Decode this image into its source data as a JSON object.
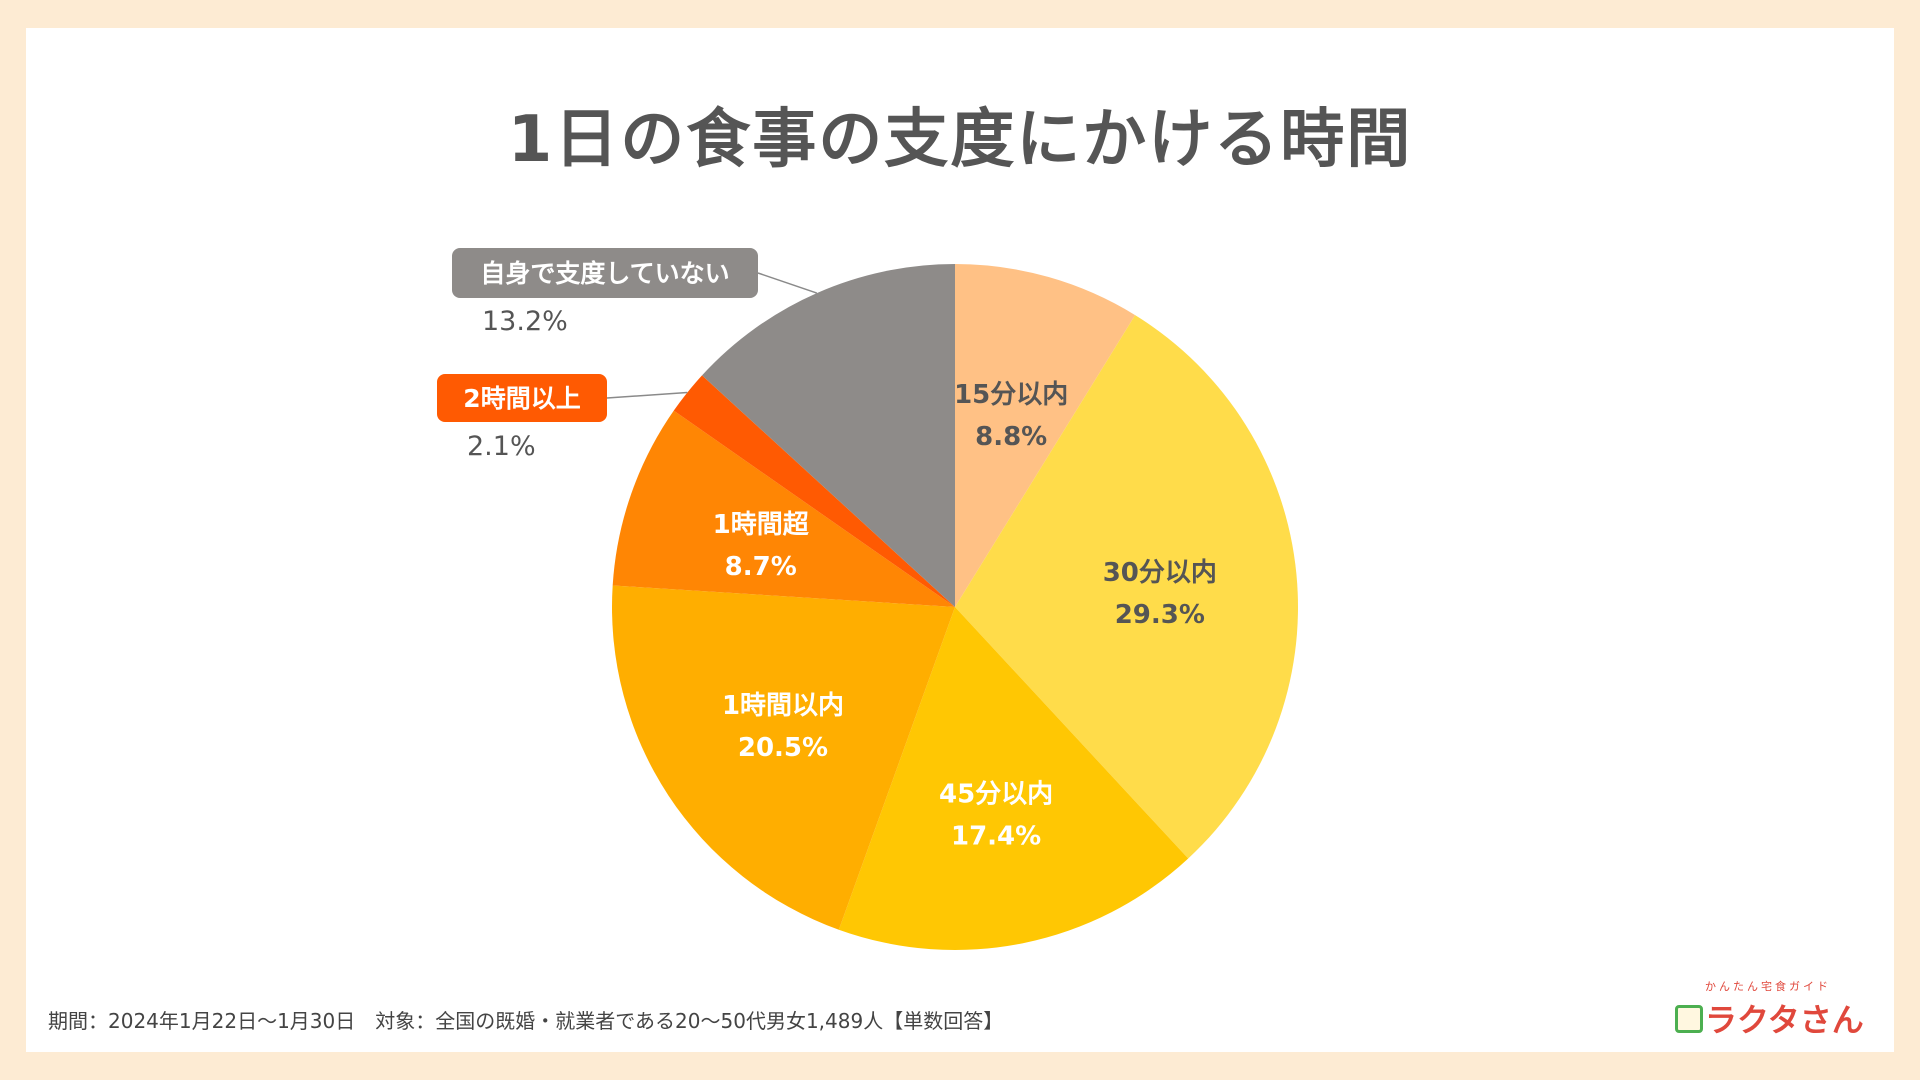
{
  "title": "1日の食事の支度にかける時間",
  "footer": "期間：2024年1月22日〜1月30日　対象：全国の既婚・就業者である20〜50代男女1,489人【単数回答】",
  "logo": {
    "tagline": "かんたん宅食ガイド",
    "name": "ラクタさん"
  },
  "colors": {
    "background": "#fdebd3",
    "card": "#ffffff",
    "title": "#555555"
  },
  "chart_data": {
    "type": "pie",
    "title": "1日の食事の支度にかける時間",
    "start": "12 o'clock, clockwise",
    "slices": [
      {
        "label": "15分以内",
        "value": 8.8,
        "display": "8.8%",
        "color": "#ffc185",
        "text_color": "#555555",
        "label_style": "inside"
      },
      {
        "label": "30分以内",
        "value": 29.3,
        "display": "29.3%",
        "color": "#ffdc4a",
        "text_color": "#555555",
        "label_style": "inside"
      },
      {
        "label": "45分以内",
        "value": 17.4,
        "display": "17.4%",
        "color": "#ffc703",
        "text_color": "#ffffff",
        "label_style": "inside"
      },
      {
        "label": "1時間以内",
        "value": 20.5,
        "display": "20.5%",
        "color": "#ffae00",
        "text_color": "#ffffff",
        "label_style": "inside"
      },
      {
        "label": "1時間超",
        "value": 8.7,
        "display": "8.7%",
        "color": "#ff8604",
        "text_color": "#ffffff",
        "label_style": "inside"
      },
      {
        "label": "2時間以上",
        "value": 2.1,
        "display": "2.1%",
        "color": "#ff5a02",
        "text_color": "#ffffff",
        "label_style": "callout"
      },
      {
        "label": "自身で支度していない",
        "value": 13.2,
        "display": "13.2%",
        "color": "#8e8b89",
        "text_color": "#ffffff",
        "label_style": "callout"
      }
    ]
  }
}
